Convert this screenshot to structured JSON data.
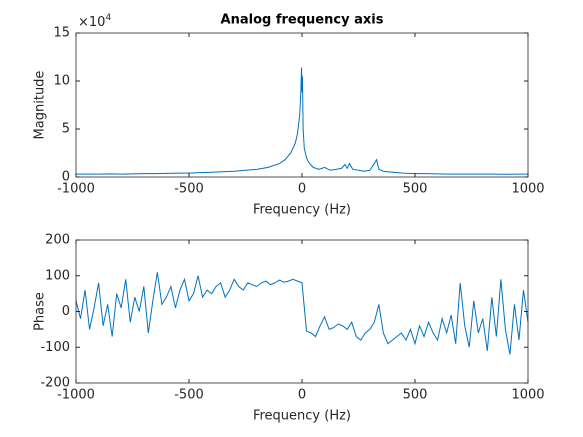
{
  "chart_data": [
    {
      "type": "line",
      "title": "Analog frequency axis",
      "xlabel": "Frequency (Hz)",
      "ylabel": "Magnitude",
      "y_multiplier": {
        "base": "×10",
        "exponent": "4"
      },
      "x": [
        -1000,
        -950,
        -900,
        -850,
        -800,
        -750,
        -700,
        -650,
        -600,
        -550,
        -500,
        -450,
        -400,
        -350,
        -300,
        -250,
        -200,
        -150,
        -100,
        -75,
        -50,
        -30,
        -20,
        -10,
        -5,
        -2,
        0,
        2,
        5,
        10,
        20,
        30,
        50,
        75,
        100,
        125,
        150,
        175,
        190,
        200,
        210,
        225,
        250,
        275,
        300,
        320,
        330,
        340,
        360,
        400,
        450,
        500,
        550,
        600,
        650,
        700,
        750,
        800,
        850,
        900,
        950,
        1000
      ],
      "series": [
        {
          "color": "#0072bd",
          "values": [
            0.3,
            0.3,
            0.3,
            0.32,
            0.3,
            0.33,
            0.35,
            0.35,
            0.38,
            0.4,
            0.4,
            0.45,
            0.5,
            0.55,
            0.6,
            0.7,
            0.8,
            1.0,
            1.4,
            1.8,
            2.5,
            3.5,
            4.5,
            6.5,
            9,
            11.4,
            8.8,
            10.5,
            5,
            3,
            2,
            1.5,
            1.0,
            0.8,
            1.0,
            0.7,
            0.8,
            0.9,
            1.3,
            0.9,
            1.4,
            0.8,
            0.7,
            0.6,
            0.7,
            1.4,
            1.8,
            0.8,
            0.6,
            0.5,
            0.4,
            0.35,
            0.35,
            0.32,
            0.3,
            0.3,
            0.3,
            0.3,
            0.3,
            0.28,
            0.3,
            0.3
          ]
        }
      ],
      "xlim": [
        -1000,
        1000
      ],
      "xticks": [
        -1000,
        -500,
        0,
        500,
        1000
      ],
      "ylim": [
        0,
        15
      ],
      "yticks": [
        0,
        5,
        10,
        15
      ]
    },
    {
      "type": "line",
      "xlabel": "Frequency (Hz)",
      "ylabel": "Phase",
      "x": [
        -1000,
        -980,
        -960,
        -940,
        -920,
        -900,
        -880,
        -860,
        -840,
        -820,
        -800,
        -780,
        -760,
        -740,
        -720,
        -700,
        -680,
        -660,
        -640,
        -620,
        -600,
        -580,
        -560,
        -540,
        -520,
        -500,
        -480,
        -460,
        -440,
        -420,
        -400,
        -380,
        -360,
        -340,
        -320,
        -300,
        -280,
        -260,
        -240,
        -220,
        -200,
        -180,
        -160,
        -140,
        -120,
        -100,
        -80,
        -60,
        -40,
        -20,
        0,
        20,
        40,
        60,
        80,
        100,
        120,
        140,
        160,
        180,
        200,
        220,
        240,
        260,
        280,
        300,
        320,
        340,
        360,
        380,
        400,
        420,
        440,
        460,
        480,
        500,
        520,
        540,
        560,
        580,
        600,
        620,
        640,
        660,
        680,
        700,
        720,
        740,
        760,
        780,
        800,
        820,
        840,
        860,
        880,
        900,
        920,
        940,
        960,
        980,
        1000
      ],
      "series": [
        {
          "color": "#0072bd",
          "values": [
            30,
            -20,
            60,
            -50,
            10,
            80,
            -40,
            20,
            -70,
            50,
            10,
            90,
            -30,
            40,
            0,
            70,
            -60,
            30,
            110,
            20,
            40,
            70,
            10,
            60,
            90,
            30,
            50,
            100,
            40,
            60,
            50,
            70,
            80,
            40,
            60,
            90,
            70,
            60,
            80,
            75,
            70,
            80,
            85,
            75,
            80,
            88,
            82,
            85,
            90,
            85,
            80,
            -55,
            -60,
            -70,
            -40,
            -15,
            -50,
            -45,
            -35,
            -40,
            -50,
            -30,
            -70,
            -80,
            -60,
            -50,
            -30,
            20,
            -60,
            -90,
            -80,
            -70,
            -60,
            -80,
            -50,
            -90,
            -40,
            -70,
            -30,
            -60,
            -80,
            -20,
            -60,
            -10,
            -90,
            80,
            -40,
            -100,
            30,
            -60,
            -20,
            -110,
            40,
            -70,
            90,
            -50,
            -120,
            20,
            -80,
            60,
            -30
          ]
        }
      ],
      "xlim": [
        -1000,
        1000
      ],
      "xticks": [
        -1000,
        -500,
        0,
        500,
        1000
      ],
      "ylim": [
        -200,
        200
      ],
      "yticks": [
        -200,
        -100,
        0,
        100,
        200
      ]
    }
  ]
}
